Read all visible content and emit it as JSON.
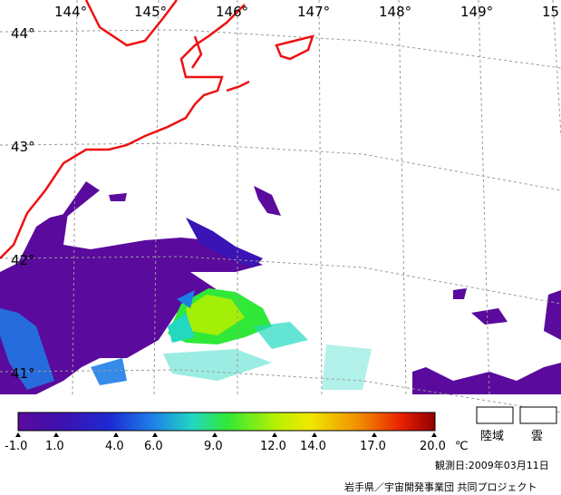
{
  "map": {
    "lon_labels": [
      "144°",
      "145°",
      "146°",
      "147°",
      "148°",
      "149°",
      "15"
    ],
    "lat_labels": [
      "44°",
      "43°",
      "42°",
      "41°"
    ]
  },
  "legend": {
    "ticks": [
      "-1.0",
      "1.0",
      "4.0",
      "6.0",
      "9.0",
      "12.0",
      "14.0",
      "17.0",
      "20.0"
    ],
    "unit": "℃",
    "land_label": "陸域",
    "cloud_label": "雲",
    "colors": [
      "#5a0a9c",
      "#3a1ab0",
      "#2030d0",
      "#1f8ce6",
      "#22d4c8",
      "#3ee64a",
      "#b8f000",
      "#f0f000",
      "#f0b000",
      "#f06000",
      "#e01000",
      "#900000"
    ]
  },
  "footer": {
    "observation_date": "観測日:2009年03月11日",
    "credit": "岩手県／宇宙開発事業団 共同プロジェクト"
  }
}
